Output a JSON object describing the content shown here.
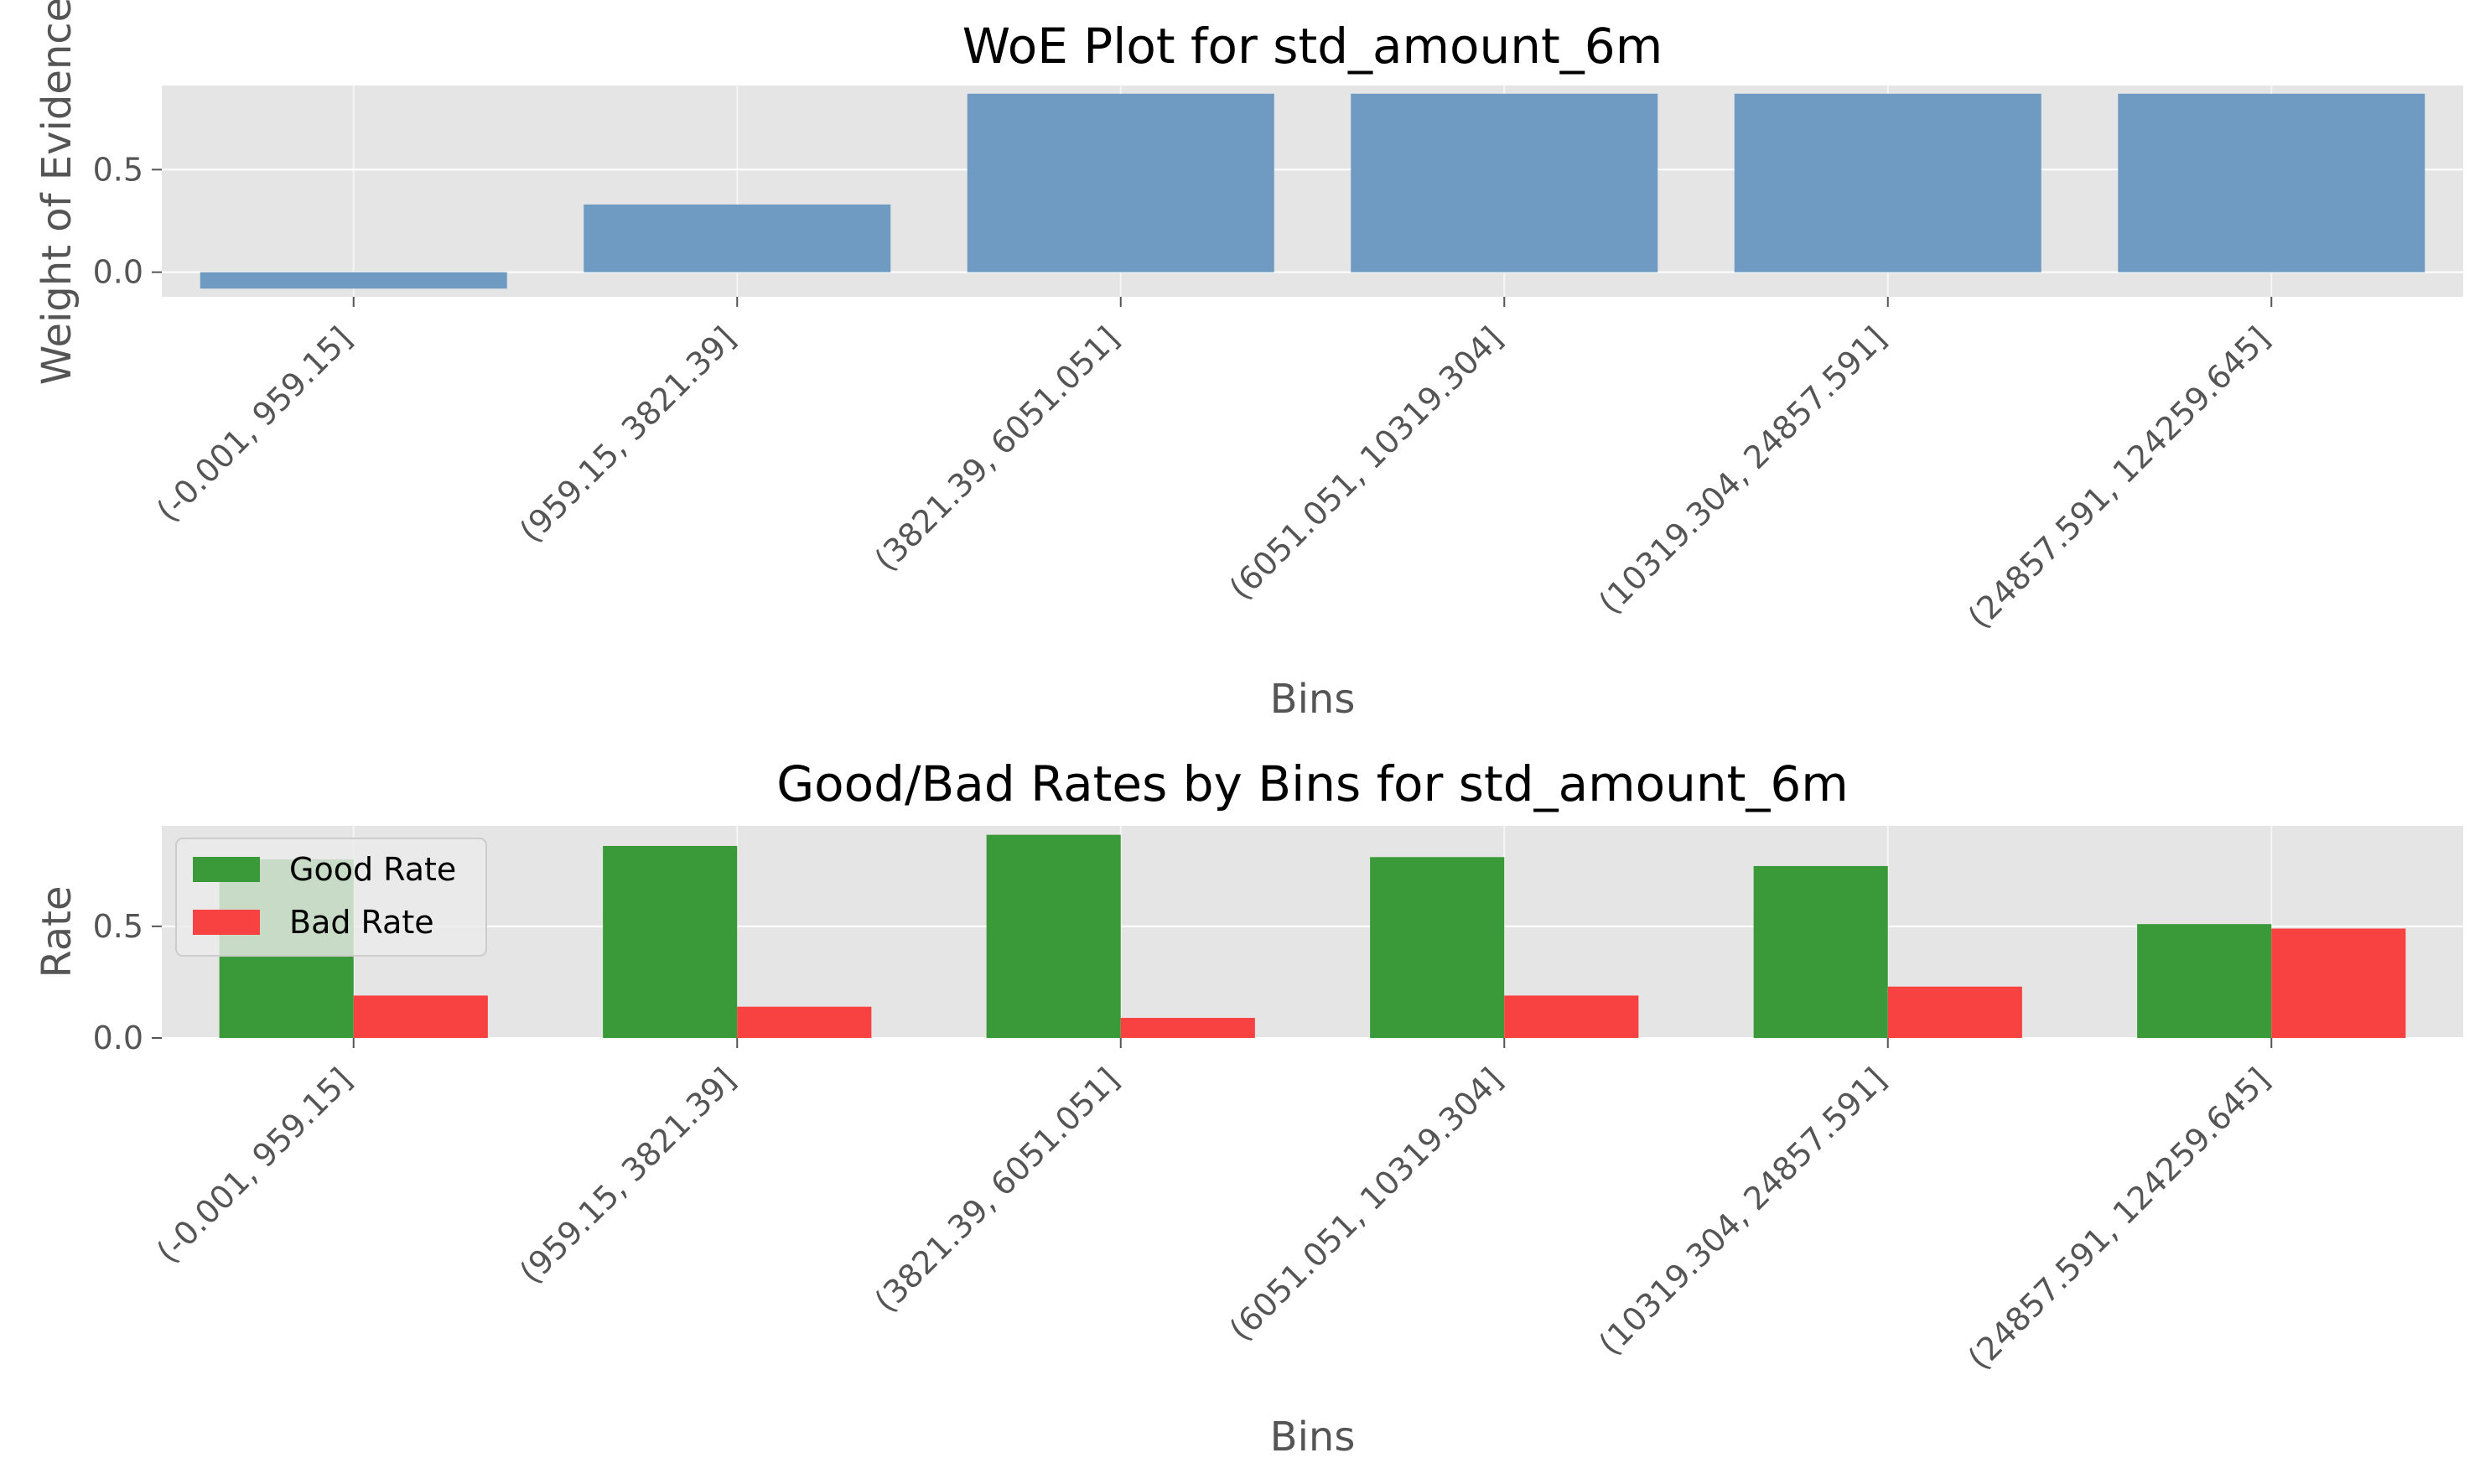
{
  "colors": {
    "plot_background": "#e5e5e5",
    "grid": "#ffffff",
    "woe_bar": "#6f9bc3",
    "good_bar": "#3a9a3a",
    "bad_bar": "#f84242",
    "text": "#555555"
  },
  "chart_data": [
    {
      "type": "bar",
      "title": "WoE Plot for std_amount_6m",
      "xlabel": "Bins",
      "ylabel": "Weight of Evidence",
      "categories": [
        "(-0.001, 959.15]",
        "(959.15, 3821.39]",
        "(3821.39, 6051.051]",
        "(6051.051, 10319.304]",
        "(10319.304, 24857.591]",
        "(24857.591, 124259.645]"
      ],
      "values": [
        -0.08,
        0.33,
        0.87,
        0.87,
        0.87,
        0.87
      ],
      "ylim": [
        -0.12,
        0.91
      ],
      "yticks": [
        0.0,
        0.5
      ],
      "ytick_labels": [
        "0.0",
        "0.5"
      ],
      "grid": true
    },
    {
      "type": "bar",
      "title": "Good/Bad Rates by Bins for std_amount_6m",
      "xlabel": "Bins",
      "ylabel": "Rate",
      "categories": [
        "(-0.001, 959.15]",
        "(959.15, 3821.39]",
        "(3821.39, 6051.051]",
        "(6051.051, 10319.304]",
        "(10319.304, 24857.591]",
        "(24857.591, 124259.645]"
      ],
      "series": [
        {
          "name": "Good Rate",
          "values": [
            0.8,
            0.86,
            0.91,
            0.81,
            0.77,
            0.51
          ]
        },
        {
          "name": "Bad Rate",
          "values": [
            0.19,
            0.14,
            0.09,
            0.19,
            0.23,
            0.49
          ]
        }
      ],
      "ylim": [
        0,
        0.95
      ],
      "yticks": [
        0.0,
        0.5
      ],
      "ytick_labels": [
        "0.0",
        "0.5"
      ],
      "legend_position": "top-left",
      "grid": true
    }
  ]
}
